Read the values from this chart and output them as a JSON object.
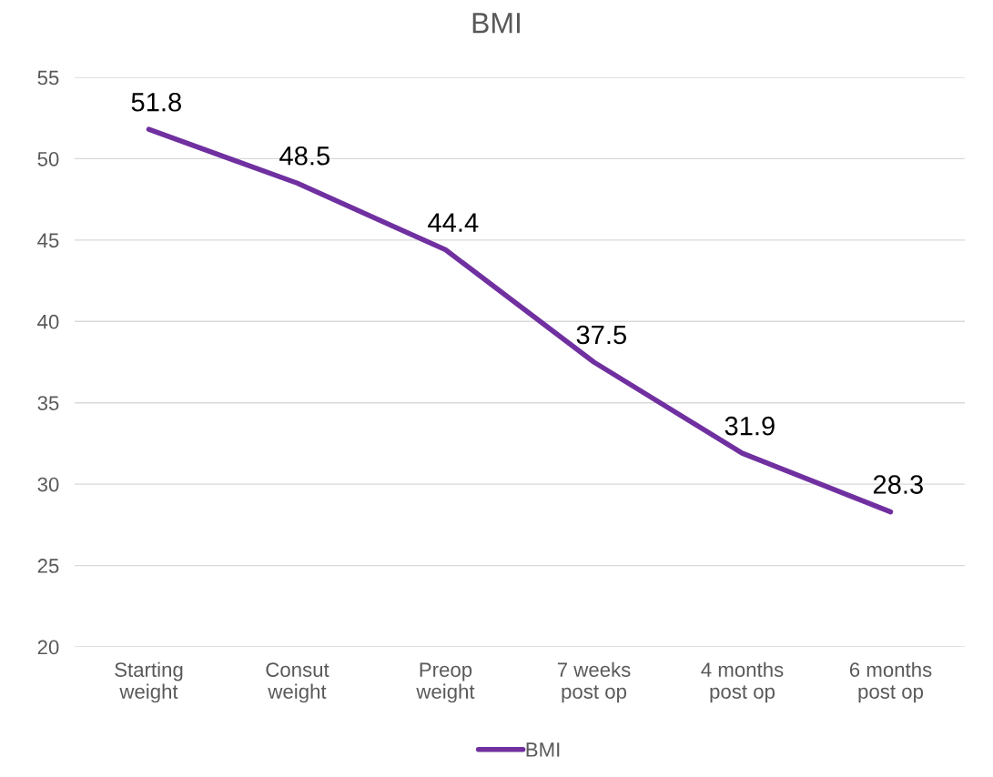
{
  "chart_data": {
    "type": "line",
    "title": "BMI",
    "categories": [
      "Starting\nweight",
      "Consut\nweight",
      "Preop\nweight",
      "7 weeks\npost op",
      "4 months\npost op",
      "6 months\npost op"
    ],
    "series": [
      {
        "name": "BMI",
        "color": "#7030a0",
        "values": [
          51.8,
          48.5,
          44.4,
          37.5,
          31.9,
          28.3
        ]
      }
    ],
    "ylim": [
      20,
      55
    ],
    "yticks": [
      20,
      25,
      30,
      35,
      40,
      45,
      50,
      55
    ],
    "grid": "y",
    "legend": "bottom",
    "data_labels": true,
    "marker": "none",
    "line_style": "solid"
  }
}
